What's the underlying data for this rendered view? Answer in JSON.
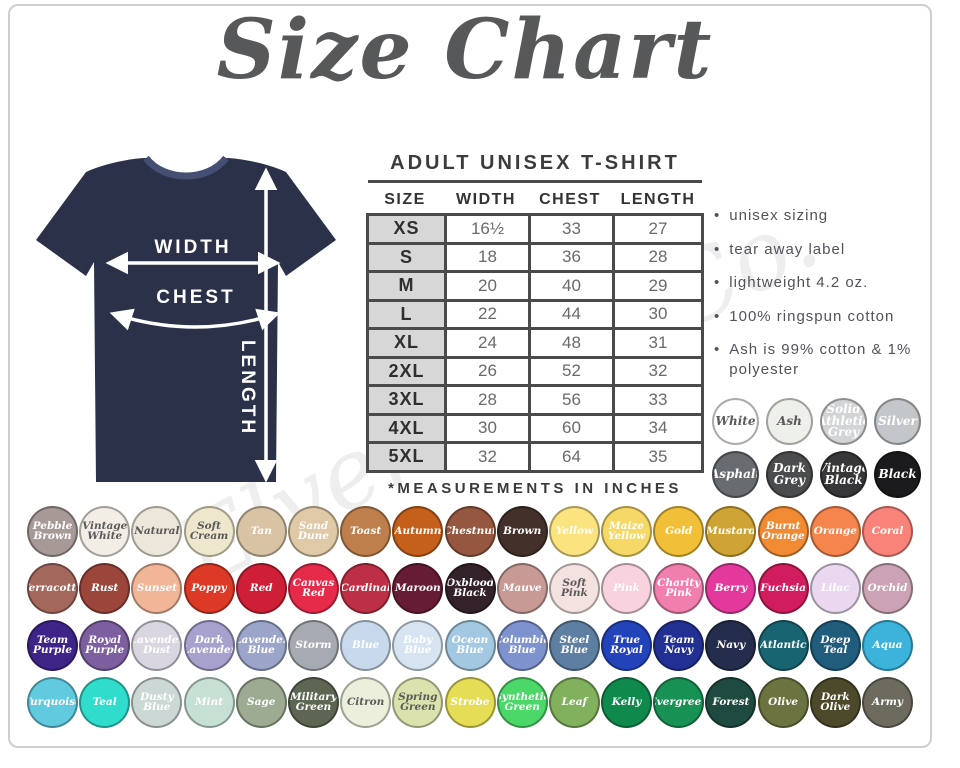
{
  "title": "Size Chart",
  "watermark": "Elven Soul Co.",
  "shirt": {
    "color": "#2a3149",
    "labels": {
      "width": "WIDTH",
      "chest": "CHEST",
      "length": "LENGTH"
    }
  },
  "size_table": {
    "heading": "ADULT UNISEX T-SHIRT",
    "columns": [
      "SIZE",
      "WIDTH",
      "CHEST",
      "LENGTH"
    ],
    "rows": [
      [
        "XS",
        "16½",
        "33",
        "27"
      ],
      [
        "S",
        "18",
        "36",
        "28"
      ],
      [
        "M",
        "20",
        "40",
        "29"
      ],
      [
        "L",
        "22",
        "44",
        "30"
      ],
      [
        "XL",
        "24",
        "48",
        "31"
      ],
      [
        "2XL",
        "26",
        "52",
        "32"
      ],
      [
        "3XL",
        "28",
        "56",
        "33"
      ],
      [
        "4XL",
        "30",
        "60",
        "34"
      ],
      [
        "5XL",
        "32",
        "64",
        "35"
      ]
    ],
    "footnote": "*MEASUREMENTS IN INCHES"
  },
  "features": [
    "unisex sizing",
    "tear away label",
    "lightweight 4.2 oz.",
    "100% ringspun cotton",
    "Ash is 99% cotton & 1% polyester"
  ],
  "neutral_swatches": [
    {
      "name": "White",
      "bg": "#ffffff",
      "fg": "#5a5a5a"
    },
    {
      "name": "Ash",
      "bg": "#eef0ea",
      "fg": "#5a5a5a"
    },
    {
      "name": "Solid Athletic Grey",
      "bg": "#d2d4d6",
      "fg": "#ffffff"
    },
    {
      "name": "Silver",
      "bg": "#c3c7ca",
      "fg": "#ffffff"
    },
    {
      "name": "Asphalt",
      "bg": "#686b70",
      "fg": "#ffffff"
    },
    {
      "name": "Dark Grey",
      "bg": "#4a4c4e",
      "fg": "#ffffff"
    },
    {
      "name": "Vintage Black",
      "bg": "#37373a",
      "fg": "#ffffff"
    },
    {
      "name": "Black",
      "bg": "#1b1b1d",
      "fg": "#ffffff"
    }
  ],
  "color_rows": [
    [
      {
        "name": "Pebble Brown",
        "bg": "#a79a96",
        "fg": "#ffffff"
      },
      {
        "name": "Vintage White",
        "bg": "#f2eee5",
        "fg": "#5a5a5a"
      },
      {
        "name": "Natural",
        "bg": "#ece7d8",
        "fg": "#5a5a5a"
      },
      {
        "name": "Soft Cream",
        "bg": "#eee7cd",
        "fg": "#5a5a5a"
      },
      {
        "name": "Tan",
        "bg": "#d8c3a5",
        "fg": "#ffffff"
      },
      {
        "name": "Sand Dune",
        "bg": "#e0c9a6",
        "fg": "#ffffff"
      },
      {
        "name": "Toast",
        "bg": "#bf7f4d",
        "fg": "#ffffff"
      },
      {
        "name": "Autumn",
        "bg": "#c55f1c",
        "fg": "#ffffff"
      },
      {
        "name": "Chestnut",
        "bg": "#95573f",
        "fg": "#ffffff"
      },
      {
        "name": "Brown",
        "bg": "#44302b",
        "fg": "#ffffff"
      },
      {
        "name": "Yellow",
        "bg": "#fbe37f",
        "fg": "#ffffff"
      },
      {
        "name": "Maize Yellow",
        "bg": "#f6d867",
        "fg": "#ffffff"
      },
      {
        "name": "Gold",
        "bg": "#f2c038",
        "fg": "#ffffff"
      },
      {
        "name": "Mustard",
        "bg": "#cfa434",
        "fg": "#ffffff"
      },
      {
        "name": "Burnt Orange",
        "bg": "#f08a33",
        "fg": "#ffffff"
      },
      {
        "name": "Orange",
        "bg": "#f5854d",
        "fg": "#ffffff"
      },
      {
        "name": "Coral",
        "bg": "#f98379",
        "fg": "#ffffff"
      }
    ],
    [
      {
        "name": "Terracotta",
        "bg": "#a4675c",
        "fg": "#ffffff"
      },
      {
        "name": "Rust",
        "bg": "#9c453b",
        "fg": "#ffffff"
      },
      {
        "name": "Sunset",
        "bg": "#f1b697",
        "fg": "#ffffff"
      },
      {
        "name": "Poppy",
        "bg": "#dc3a27",
        "fg": "#ffffff"
      },
      {
        "name": "Red",
        "bg": "#cf1f37",
        "fg": "#ffffff"
      },
      {
        "name": "Canvas Red",
        "bg": "#e62a49",
        "fg": "#ffffff"
      },
      {
        "name": "Cardinal",
        "bg": "#bd2f44",
        "fg": "#ffffff"
      },
      {
        "name": "Maroon",
        "bg": "#671c36",
        "fg": "#ffffff"
      },
      {
        "name": "Oxblood Black",
        "bg": "#33222a",
        "fg": "#ffffff"
      },
      {
        "name": "Mauve",
        "bg": "#c89a96",
        "fg": "#ffffff"
      },
      {
        "name": "Soft Pink",
        "bg": "#f4e2e0",
        "fg": "#5a5a5a"
      },
      {
        "name": "Pink",
        "bg": "#f8d2de",
        "fg": "#ffffff"
      },
      {
        "name": "Charity Pink",
        "bg": "#f17fae",
        "fg": "#ffffff"
      },
      {
        "name": "Berry",
        "bg": "#e4399c",
        "fg": "#ffffff"
      },
      {
        "name": "Fuchsia",
        "bg": "#d11d5d",
        "fg": "#ffffff"
      },
      {
        "name": "Lilac",
        "bg": "#e9d8ef",
        "fg": "#ffffff"
      },
      {
        "name": "Orchid",
        "bg": "#cba3b4",
        "fg": "#ffffff"
      }
    ],
    [
      {
        "name": "Team Purple",
        "bg": "#3f2488",
        "fg": "#ffffff"
      },
      {
        "name": "Royal Purple",
        "bg": "#7d5f9f",
        "fg": "#ffffff"
      },
      {
        "name": "Lavender Dust",
        "bg": "#d9d6e2",
        "fg": "#ffffff"
      },
      {
        "name": "Dark Lavender",
        "bg": "#a6a2cd",
        "fg": "#ffffff"
      },
      {
        "name": "Lavender Blue",
        "bg": "#9aa5c9",
        "fg": "#ffffff"
      },
      {
        "name": "Storm",
        "bg": "#a6aab2",
        "fg": "#ffffff"
      },
      {
        "name": "Blue",
        "bg": "#c8d9ec",
        "fg": "#ffffff"
      },
      {
        "name": "Baby Blue",
        "bg": "#d6e4f1",
        "fg": "#ffffff"
      },
      {
        "name": "Ocean Blue",
        "bg": "#a3c9e2",
        "fg": "#ffffff"
      },
      {
        "name": "Columbia Blue",
        "bg": "#7e93cd",
        "fg": "#ffffff"
      },
      {
        "name": "Steel Blue",
        "bg": "#5f7fa2",
        "fg": "#ffffff"
      },
      {
        "name": "True Royal",
        "bg": "#2343bb",
        "fg": "#ffffff"
      },
      {
        "name": "Team Navy",
        "bg": "#223093",
        "fg": "#ffffff"
      },
      {
        "name": "Navy",
        "bg": "#242e4c",
        "fg": "#ffffff"
      },
      {
        "name": "Atlantic",
        "bg": "#186470",
        "fg": "#ffffff"
      },
      {
        "name": "Deep Teal",
        "bg": "#205d7c",
        "fg": "#ffffff"
      },
      {
        "name": "Aqua",
        "bg": "#3bb3da",
        "fg": "#ffffff"
      }
    ],
    [
      {
        "name": "Turquoise",
        "bg": "#61cade",
        "fg": "#ffffff"
      },
      {
        "name": "Teal",
        "bg": "#30dccb",
        "fg": "#ffffff"
      },
      {
        "name": "Dusty Blue",
        "bg": "#ccd8d5",
        "fg": "#ffffff"
      },
      {
        "name": "Mint",
        "bg": "#c6e1d3",
        "fg": "#ffffff"
      },
      {
        "name": "Sage",
        "bg": "#9cab91",
        "fg": "#ffffff"
      },
      {
        "name": "Military Green",
        "bg": "#5d6652",
        "fg": "#ffffff"
      },
      {
        "name": "Citron",
        "bg": "#edefdd",
        "fg": "#5a5a5a"
      },
      {
        "name": "Spring Green",
        "bg": "#dbe2ae",
        "fg": "#5a5a5a"
      },
      {
        "name": "Strobe",
        "bg": "#e5dd55",
        "fg": "#ffffff"
      },
      {
        "name": "Synthetic Green",
        "bg": "#4bd868",
        "fg": "#ffffff"
      },
      {
        "name": "Leaf",
        "bg": "#81b15c",
        "fg": "#ffffff"
      },
      {
        "name": "Kelly",
        "bg": "#10894d",
        "fg": "#ffffff"
      },
      {
        "name": "Evergreen",
        "bg": "#189155",
        "fg": "#ffffff"
      },
      {
        "name": "Forest",
        "bg": "#1e4a40",
        "fg": "#ffffff"
      },
      {
        "name": "Olive",
        "bg": "#6c7340",
        "fg": "#ffffff"
      },
      {
        "name": "Dark Olive",
        "bg": "#4c4a2a",
        "fg": "#ffffff"
      },
      {
        "name": "Army",
        "bg": "#6d6b5e",
        "fg": "#ffffff"
      }
    ]
  ]
}
